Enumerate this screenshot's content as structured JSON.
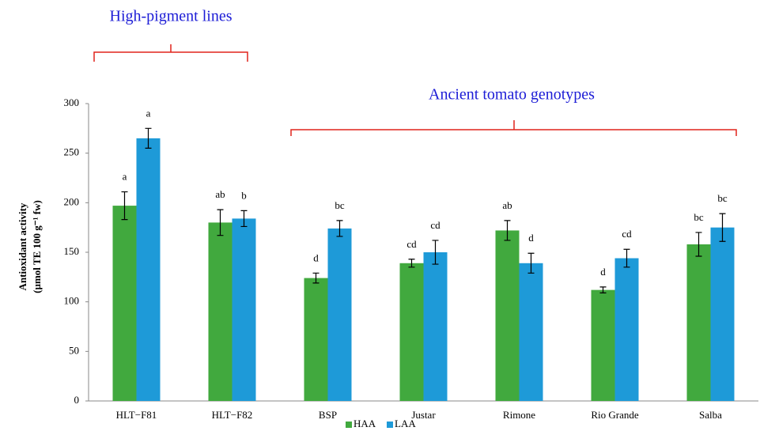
{
  "chart_data": {
    "type": "bar",
    "y_label": [
      "Antioxidant activity",
      "(µmol TE 100 g⁻¹ fw)"
    ],
    "annotations": [
      "High-pigment lines",
      "Ancient tomato genotypes"
    ],
    "categories": [
      "HLT−F81",
      "HLT−F82",
      "BSP",
      "Justar",
      "Rimone",
      "Rio Grande",
      "Salba"
    ],
    "series": [
      {
        "name": "HAA",
        "color": "#41a93e",
        "values": [
          197,
          180,
          124,
          139,
          172,
          112,
          158
        ],
        "errors": [
          14,
          13,
          5,
          4,
          10,
          3,
          12
        ],
        "letters": [
          "a",
          "ab",
          "d",
          "cd",
          "ab",
          "d",
          "bc"
        ]
      },
      {
        "name": "LAA",
        "color": "#1e9ad8",
        "values": [
          265,
          184,
          174,
          150,
          139,
          144,
          175
        ],
        "errors": [
          10,
          8,
          8,
          12,
          10,
          9,
          14
        ],
        "letters": [
          "a",
          "b",
          "bc",
          "cd",
          "d",
          "cd",
          "bc"
        ]
      }
    ],
    "ylim": [
      0,
      300
    ],
    "yticks": [
      0,
      50,
      100,
      150,
      200,
      250,
      300
    ],
    "legend": "bottom"
  }
}
